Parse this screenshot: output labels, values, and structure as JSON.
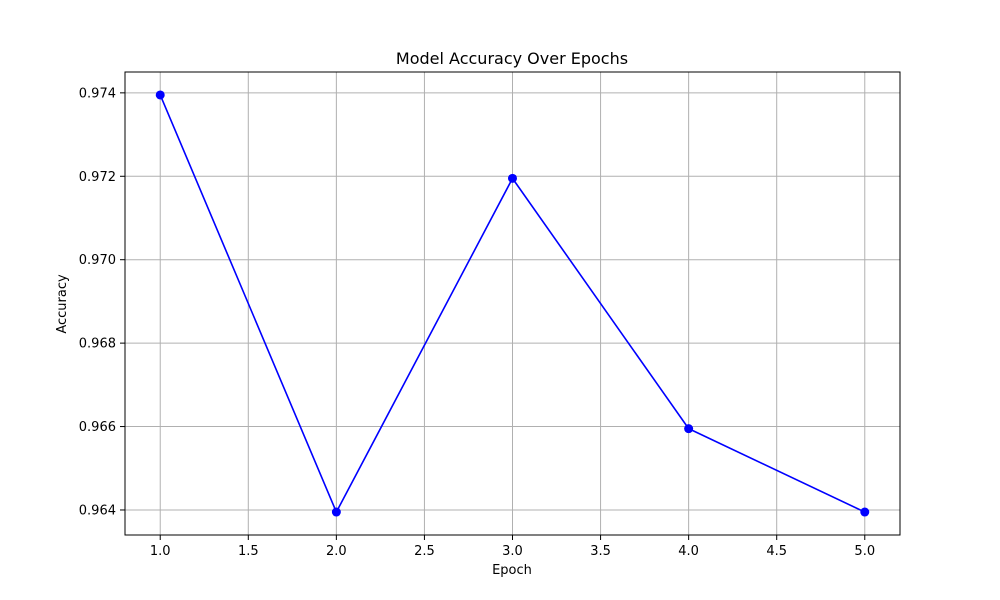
{
  "chart_data": {
    "type": "line",
    "title": "Model Accuracy Over Epochs",
    "xlabel": "Epoch",
    "ylabel": "Accuracy",
    "x": [
      1,
      2,
      3,
      4,
      5
    ],
    "series": [
      {
        "values": [
          0.97395,
          0.96395,
          0.97195,
          0.96595,
          0.96395
        ],
        "color": "#0000ff",
        "marker": "circle"
      }
    ],
    "xlim": [
      0.8,
      5.2
    ],
    "ylim": [
      0.9634,
      0.9745
    ],
    "xticks": [
      1.0,
      1.5,
      2.0,
      2.5,
      3.0,
      3.5,
      4.0,
      4.5,
      5.0
    ],
    "xtick_labels": [
      "1.0",
      "1.5",
      "2.0",
      "2.5",
      "3.0",
      "3.5",
      "4.0",
      "4.5",
      "5.0"
    ],
    "yticks": [
      0.964,
      0.966,
      0.968,
      0.97,
      0.972,
      0.974
    ],
    "ytick_labels": [
      "0.964",
      "0.966",
      "0.968",
      "0.970",
      "0.972",
      "0.974"
    ],
    "grid": true,
    "grid_color": "#b0b0b0",
    "axis_color": "#000000"
  }
}
